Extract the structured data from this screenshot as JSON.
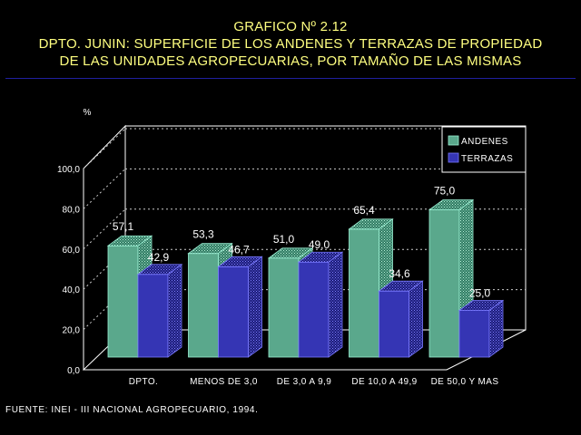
{
  "header": {
    "line1": "GRAFICO Nº 2.12",
    "line2": "DPTO. JUNIN: SUPERFICIE DE LOS ANDENES Y TERRAZAS DE PROPIEDAD",
    "line3": "DE LAS UNIDADES AGROPECUARIAS, POR TAMAÑO DE LAS MISMAS"
  },
  "chart_data": {
    "type": "bar",
    "ylabel": "%",
    "ylim": [
      0,
      100
    ],
    "yticks": [
      "0,0",
      "20,0",
      "40,0",
      "60,0",
      "80,0",
      "100,0"
    ],
    "categories": [
      "DPTO.",
      "MENOS DE 3,0",
      "DE 3,0 A 9,9",
      "DE 10,0 A 49,9",
      "DE 50,0 Y MAS"
    ],
    "series": [
      {
        "name": "ANDENES",
        "values": [
          57.1,
          53.3,
          51.0,
          65.4,
          75.0
        ],
        "labels": [
          "57,1",
          "53,3",
          "51,0",
          "65,4",
          "75,0"
        ],
        "color": "#5aa88c"
      },
      {
        "name": "TERRAZAS",
        "values": [
          42.9,
          46.7,
          49.0,
          34.6,
          25.0
        ],
        "labels": [
          "42,9",
          "46,7",
          "49,0",
          "34,6",
          "25,0"
        ],
        "color": "#3535b4"
      }
    ],
    "grid": true,
    "legend": "top-right"
  },
  "source": "FUENTE: INEI - III NACIONAL AGROPECUARIO, 1994."
}
